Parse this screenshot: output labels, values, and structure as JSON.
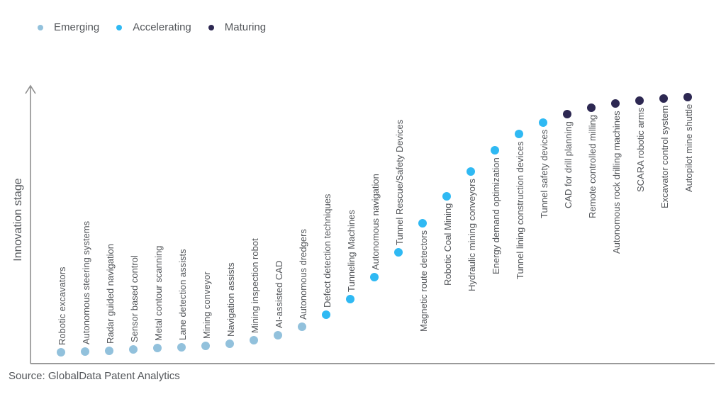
{
  "colors": {
    "text": "#53565A",
    "axis": "#8F8F8F"
  },
  "legend": {
    "items": [
      {
        "label": "Emerging",
        "color": "#92C1DC"
      },
      {
        "label": "Accelerating",
        "color": "#2FB9F3"
      },
      {
        "label": "Maturing",
        "color": "#2D2852"
      }
    ]
  },
  "chart_data": {
    "type": "scatter",
    "title": "",
    "xlabel": "",
    "ylabel": "Innovation stage",
    "source": "Source: GlobalData Patent Analytics",
    "legend_position": "top-left",
    "axes": {
      "grid": false,
      "numeric_ticks": false,
      "y_arrow": true,
      "value_scale": [
        0,
        100
      ]
    },
    "stage_colors": {
      "Emerging": "#92C1DC",
      "Accelerating": "#2FB9F3",
      "Maturing": "#2D2852"
    },
    "points": [
      {
        "label": "Robotic excavators",
        "stage": "Emerging",
        "value": 4.1,
        "label_position": "above"
      },
      {
        "label": "Autonomous steering systems",
        "stage": "Emerging",
        "value": 4.3,
        "label_position": "above"
      },
      {
        "label": "Radar guided navigation",
        "stage": "Emerging",
        "value": 4.6,
        "label_position": "above"
      },
      {
        "label": "Sensor based control",
        "stage": "Emerging",
        "value": 5.1,
        "label_position": "above"
      },
      {
        "label": "Metal contour scanning",
        "stage": "Emerging",
        "value": 5.6,
        "label_position": "above"
      },
      {
        "label": "Lane detection assists",
        "stage": "Emerging",
        "value": 5.9,
        "label_position": "above"
      },
      {
        "label": "Mining conveyor",
        "stage": "Emerging",
        "value": 6.4,
        "label_position": "above"
      },
      {
        "label": "Navigation assists",
        "stage": "Emerging",
        "value": 7.1,
        "label_position": "above"
      },
      {
        "label": "Mining inspection robot",
        "stage": "Emerging",
        "value": 8.4,
        "label_position": "above"
      },
      {
        "label": "AI-assisted CAD",
        "stage": "Emerging",
        "value": 10.2,
        "label_position": "above"
      },
      {
        "label": "Autonomous dredgers",
        "stage": "Emerging",
        "value": 13.2,
        "label_position": "above"
      },
      {
        "label": "Defect detection techniques",
        "stage": "Accelerating",
        "value": 17.6,
        "label_position": "above"
      },
      {
        "label": "Tunneling Machines",
        "stage": "Accelerating",
        "value": 23.2,
        "label_position": "above"
      },
      {
        "label": "Autonomous navigation",
        "stage": "Accelerating",
        "value": 31.0,
        "label_position": "above"
      },
      {
        "label": "Tunnel Rescue/Safety Devices",
        "stage": "Accelerating",
        "value": 40.0,
        "label_position": "above"
      },
      {
        "label": "Magnetic route detectors",
        "stage": "Accelerating",
        "value": 50.4,
        "label_position": "below"
      },
      {
        "label": "Robotic Coal Mining",
        "stage": "Accelerating",
        "value": 60.1,
        "label_position": "below"
      },
      {
        "label": "Hydraulic mining conveyors",
        "stage": "Accelerating",
        "value": 69.0,
        "label_position": "below"
      },
      {
        "label": "Energy demand optimization",
        "stage": "Accelerating",
        "value": 76.6,
        "label_position": "below"
      },
      {
        "label": "Tunnel lining construction devices",
        "stage": "Accelerating",
        "value": 82.4,
        "label_position": "below"
      },
      {
        "label": "Tunnel safety devices",
        "stage": "Accelerating",
        "value": 86.5,
        "label_position": "below"
      },
      {
        "label": "CAD for drill planning",
        "stage": "Maturing",
        "value": 89.6,
        "label_position": "below"
      },
      {
        "label": "Remote controlled milling",
        "stage": "Maturing",
        "value": 91.9,
        "label_position": "below"
      },
      {
        "label": "Autonomous rock drilling machines",
        "stage": "Maturing",
        "value": 93.4,
        "label_position": "below"
      },
      {
        "label": "SCARA robotic arms",
        "stage": "Maturing",
        "value": 94.4,
        "label_position": "below"
      },
      {
        "label": "Excavator control system",
        "stage": "Maturing",
        "value": 95.2,
        "label_position": "below"
      },
      {
        "label": "Autopilot mine shuttle",
        "stage": "Maturing",
        "value": 95.7,
        "label_position": "below"
      }
    ]
  }
}
